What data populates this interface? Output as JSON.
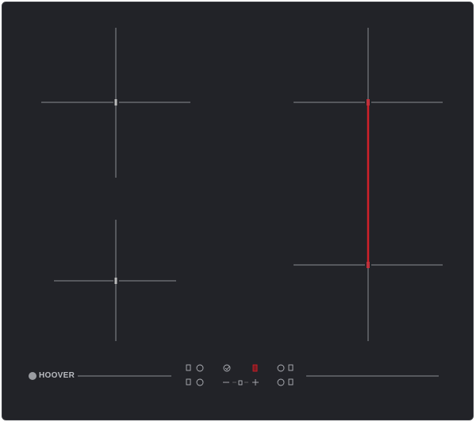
{
  "brand": {
    "name": "HOOVER"
  },
  "colors": {
    "glass": "#222328",
    "lines": "#8a8c92",
    "active": "#d0202a",
    "frame": "#3a3b40"
  },
  "cooking_zones": [
    {
      "name": "front-left",
      "active": false
    },
    {
      "name": "rear-left",
      "active": false
    },
    {
      "name": "right-bridge",
      "active": true
    }
  ],
  "controls": {
    "top_row": [
      "zone-select-icon",
      "power-icon",
      "timer-icon",
      "bridge-indicator-icon",
      "power-icon",
      "zone-select-icon"
    ],
    "bottom_row": [
      "zone-select-icon",
      "power-icon",
      "minus-icon",
      "lock-icon",
      "plus-icon",
      "power-icon",
      "zone-select-icon"
    ]
  }
}
